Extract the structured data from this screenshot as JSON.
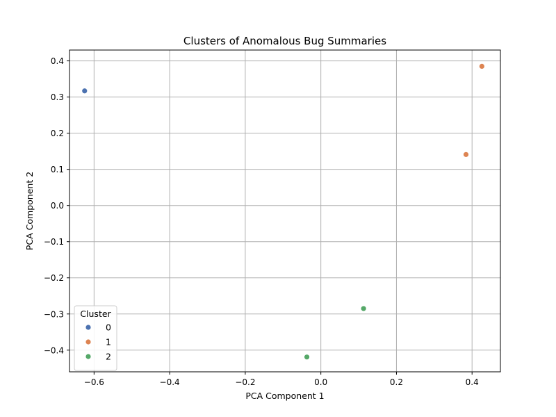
{
  "chart_data": {
    "type": "scatter",
    "title": "Clusters of Anomalous Bug Summaries",
    "xlabel": "PCA Component 1",
    "ylabel": "PCA Component 2",
    "xlim": [
      -0.665,
      0.475
    ],
    "ylim": [
      -0.46,
      0.43
    ],
    "xticks": [
      -0.6,
      -0.4,
      -0.2,
      0.0,
      0.2,
      0.4
    ],
    "yticks": [
      -0.4,
      -0.3,
      -0.2,
      -0.1,
      0.0,
      0.1,
      0.2,
      0.3,
      0.4
    ],
    "xtick_labels": [
      "−0.6",
      "−0.4",
      "−0.2",
      "0.0",
      "0.2",
      "0.4"
    ],
    "ytick_labels": [
      "−0.4",
      "−0.3",
      "−0.2",
      "−0.1",
      "0.0",
      "0.1",
      "0.2",
      "0.3",
      "0.4"
    ],
    "grid": true,
    "legend": {
      "title": "Cluster",
      "placement": "lower-left"
    },
    "series": [
      {
        "name": "0",
        "color": "#4c72b0",
        "points": [
          {
            "x": -0.625,
            "y": 0.317
          }
        ]
      },
      {
        "name": "1",
        "color": "#dd8452",
        "points": [
          {
            "x": 0.426,
            "y": 0.385
          },
          {
            "x": 0.384,
            "y": 0.141
          }
        ]
      },
      {
        "name": "2",
        "color": "#55a868",
        "points": [
          {
            "x": 0.113,
            "y": -0.285
          },
          {
            "x": -0.037,
            "y": -0.419
          }
        ]
      }
    ]
  }
}
